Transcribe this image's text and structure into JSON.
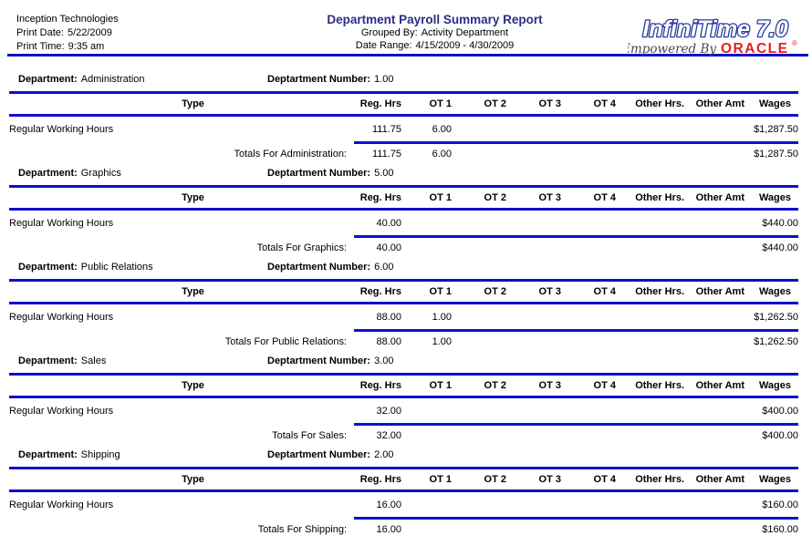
{
  "header": {
    "company": "Inception Technologies",
    "print_date_label": "Print Date:",
    "print_date": "5/22/2009",
    "print_time_label": "Print Time:",
    "print_time": "9:35 am",
    "title": "Department Payroll Summary Report",
    "grouped_by_label": "Grouped By:",
    "grouped_by": "Activity Department",
    "date_range_label": "Date Range:",
    "date_range": "4/15/2009 - 4/30/2009",
    "logo": {
      "product": "InfiniTime 7.0",
      "tagline": "Empowered By",
      "brand": "ORACLE",
      "registered": "®"
    }
  },
  "labels": {
    "department": "Department:",
    "department_number": "Deptartment Number:"
  },
  "columns": [
    "Type",
    "Reg. Hrs",
    "OT 1",
    "OT 2",
    "OT 3",
    "OT 4",
    "Other Hrs.",
    "Other Amt",
    "Wages"
  ],
  "sections": [
    {
      "department": "Administration",
      "department_number": "1.00",
      "rows": [
        {
          "type": "Regular Working Hours",
          "reg_hrs": "111.75",
          "ot1": "6.00",
          "ot2": "",
          "ot3": "",
          "ot4": "",
          "other_hrs": "",
          "other_amt": "",
          "wages": "$1,287.50"
        }
      ],
      "totals_label": "Totals For Administration:",
      "totals": {
        "reg_hrs": "111.75",
        "ot1": "6.00",
        "ot2": "",
        "ot3": "",
        "ot4": "",
        "other_hrs": "",
        "other_amt": "",
        "wages": "$1,287.50"
      }
    },
    {
      "department": "Graphics",
      "department_number": "5.00",
      "rows": [
        {
          "type": "Regular Working Hours",
          "reg_hrs": "40.00",
          "ot1": "",
          "ot2": "",
          "ot3": "",
          "ot4": "",
          "other_hrs": "",
          "other_amt": "",
          "wages": "$440.00"
        }
      ],
      "totals_label": "Totals For Graphics:",
      "totals": {
        "reg_hrs": "40.00",
        "ot1": "",
        "ot2": "",
        "ot3": "",
        "ot4": "",
        "other_hrs": "",
        "other_amt": "",
        "wages": "$440.00"
      }
    },
    {
      "department": "Public Relations",
      "department_number": "6.00",
      "rows": [
        {
          "type": "Regular Working Hours",
          "reg_hrs": "88.00",
          "ot1": "1.00",
          "ot2": "",
          "ot3": "",
          "ot4": "",
          "other_hrs": "",
          "other_amt": "",
          "wages": "$1,262.50"
        }
      ],
      "totals_label": "Totals For Public Relations:",
      "totals": {
        "reg_hrs": "88.00",
        "ot1": "1.00",
        "ot2": "",
        "ot3": "",
        "ot4": "",
        "other_hrs": "",
        "other_amt": "",
        "wages": "$1,262.50"
      }
    },
    {
      "department": "Sales",
      "department_number": "3.00",
      "rows": [
        {
          "type": "Regular Working Hours",
          "reg_hrs": "32.00",
          "ot1": "",
          "ot2": "",
          "ot3": "",
          "ot4": "",
          "other_hrs": "",
          "other_amt": "",
          "wages": "$400.00"
        }
      ],
      "totals_label": "Totals For Sales:",
      "totals": {
        "reg_hrs": "32.00",
        "ot1": "",
        "ot2": "",
        "ot3": "",
        "ot4": "",
        "other_hrs": "",
        "other_amt": "",
        "wages": "$400.00"
      }
    },
    {
      "department": "Shipping",
      "department_number": "2.00",
      "rows": [
        {
          "type": "Regular Working Hours",
          "reg_hrs": "16.00",
          "ot1": "",
          "ot2": "",
          "ot3": "",
          "ot4": "",
          "other_hrs": "",
          "other_amt": "",
          "wages": "$160.00"
        }
      ],
      "totals_label": "Totals For Shipping:",
      "totals": {
        "reg_hrs": "16.00",
        "ot1": "",
        "ot2": "",
        "ot3": "",
        "ot4": "",
        "other_hrs": "",
        "other_amt": "",
        "wages": "$160.00"
      }
    }
  ],
  "colors": {
    "rule_blue": "#0f0fc8",
    "title_navy": "#2d2d86",
    "logo_blue": "#2b3a9c",
    "oracle_red": "#e51f1f"
  }
}
